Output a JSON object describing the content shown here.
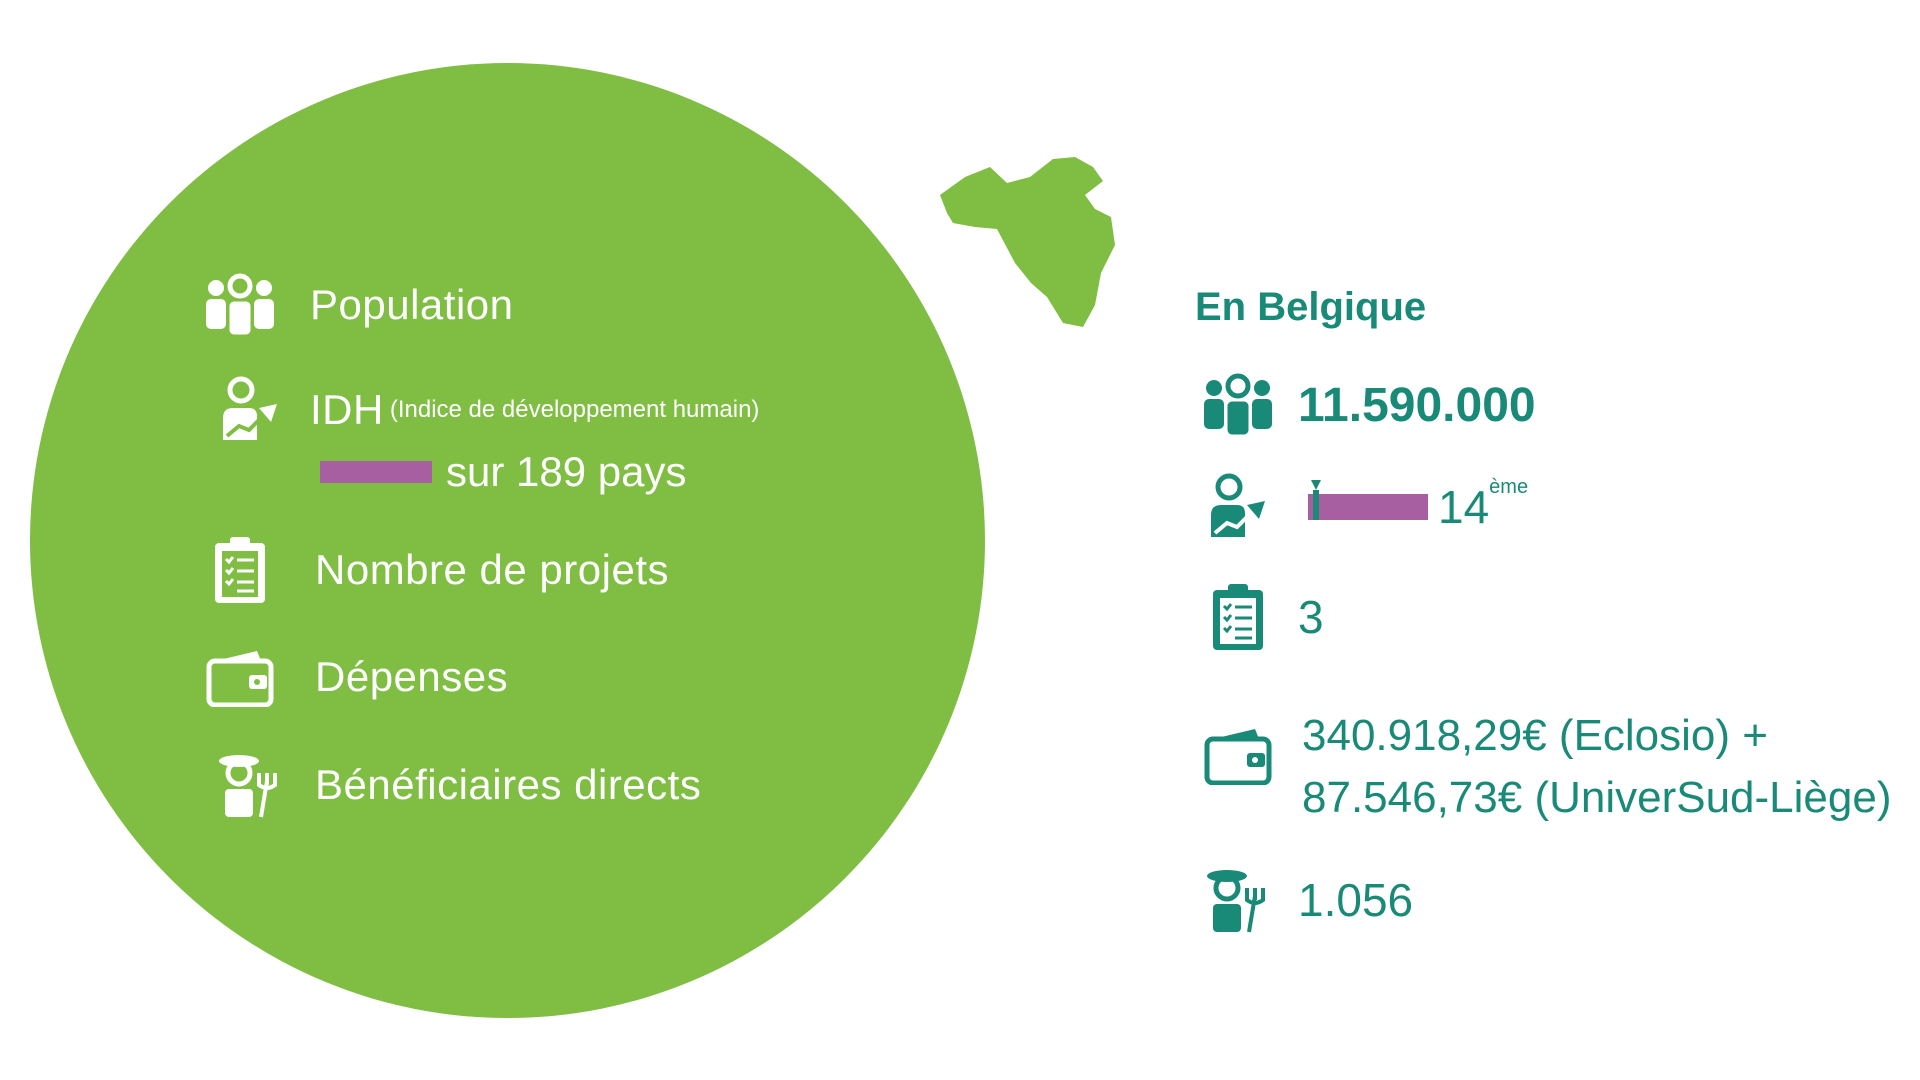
{
  "legend": {
    "population_label": "Population",
    "idh_label": "IDH",
    "idh_sub": "(Indice de développement humain)",
    "idh_line2": "sur 189 pays",
    "projects_label": "Nombre de projets",
    "expenses_label": "Dépenses",
    "beneficiaries_label": "Bénéficiaires directs"
  },
  "country": {
    "title": "En Belgique",
    "population": "11.590.000",
    "idh_rank": "14",
    "idh_rank_suffix": "ème",
    "idh_rank_number": 14,
    "idh_total": 189,
    "projects": "3",
    "expenses_line1": "340.918,29€ (Eclosio) +",
    "expenses_line2": "87.546,73€ (UniverSud-Liège)",
    "beneficiaries": "1.056"
  },
  "colors": {
    "circle": "#7fbd43",
    "accent": "#1a8a78",
    "bar": "#a75fa1",
    "map": "#7fbd43"
  },
  "icons": [
    "people-icon",
    "person-chart-icon",
    "clipboard-checklist-icon",
    "wallet-icon",
    "farmer-icon"
  ]
}
